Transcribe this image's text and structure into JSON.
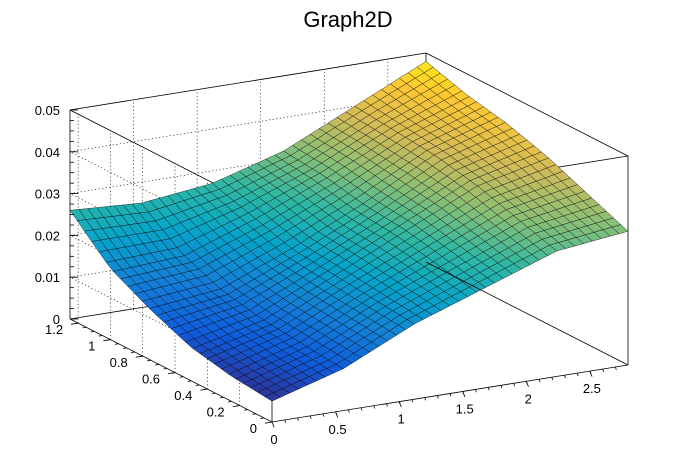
{
  "chart_data": {
    "type": "surface",
    "title": "Graph2D",
    "xlabel": "",
    "ylabel": "",
    "zlabel": "",
    "xlim": [
      0,
      2.8
    ],
    "ylim": [
      0,
      1.25
    ],
    "zlim": [
      0,
      0.05
    ],
    "x_ticks": [
      "0",
      "0.5",
      "1",
      "1.5",
      "2",
      "2.5"
    ],
    "x_tick_values": [
      0,
      0.5,
      1,
      1.5,
      2,
      2.5
    ],
    "y_ticks": [
      "0",
      "0.2",
      "0.4",
      "0.6",
      "0.8",
      "1",
      "1.2"
    ],
    "y_tick_values": [
      0,
      0.2,
      0.4,
      0.6,
      0.8,
      1.0,
      1.2
    ],
    "z_ticks": [
      "0",
      "0.01",
      "0.02",
      "0.03",
      "0.04",
      "0.05"
    ],
    "z_tick_values": [
      0,
      0.01,
      0.02,
      0.03,
      0.04,
      0.05
    ],
    "grid": true,
    "colormap": [
      "#352a87",
      "#0f5cdd",
      "#1481d6",
      "#06a4ca",
      "#2eb7a4",
      "#87bf77",
      "#d1bb59",
      "#fec832",
      "#f9fb0e"
    ],
    "z_samples": {
      "x": [
        0,
        0.56,
        1.12,
        1.68,
        2.24,
        2.8
      ],
      "y": [
        0,
        0.25,
        0.5,
        0.75,
        1.0,
        1.25
      ],
      "z": [
        [
          0.005,
          0.01,
          0.018,
          0.024,
          0.03,
          0.032
        ],
        [
          0.006,
          0.011,
          0.019,
          0.026,
          0.033,
          0.036
        ],
        [
          0.008,
          0.012,
          0.02,
          0.028,
          0.036,
          0.04
        ],
        [
          0.012,
          0.014,
          0.021,
          0.029,
          0.038,
          0.043
        ],
        [
          0.017,
          0.018,
          0.024,
          0.031,
          0.039,
          0.045
        ],
        [
          0.026,
          0.025,
          0.027,
          0.032,
          0.04,
          0.048
        ]
      ]
    }
  }
}
